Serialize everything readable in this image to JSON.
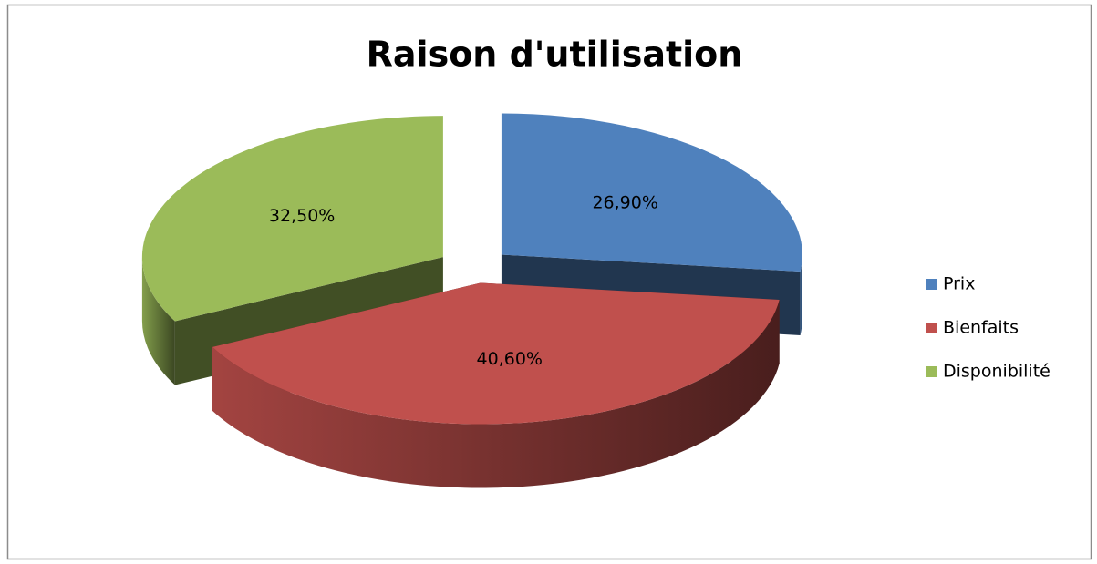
{
  "chart_data": {
    "type": "pie",
    "title": "Raison d'utilisation",
    "categories": [
      "Prix",
      "Bienfaits",
      "Disponibilité"
    ],
    "values": [
      26.9,
      40.6,
      32.5
    ],
    "value_labels": [
      "26,90%",
      "40,60%",
      "32,50%"
    ],
    "colors": [
      "#4f81bd",
      "#c0504d",
      "#9bbb59"
    ],
    "legend": "right"
  }
}
